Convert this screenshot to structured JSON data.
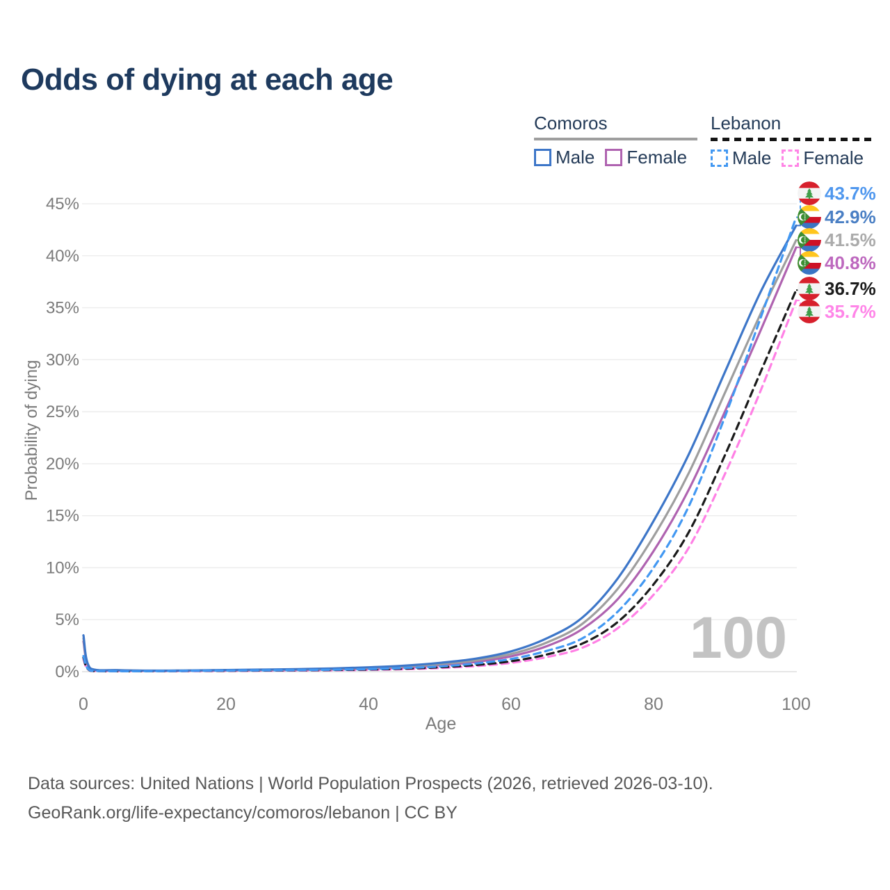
{
  "title": "Odds of dying at each age",
  "legend": {
    "groups": [
      {
        "country": "Comoros",
        "line_style": "solid",
        "underline_color": "#9e9e9e",
        "items": [
          {
            "label": "Male",
            "color": "#3d76c8",
            "dashed": false
          },
          {
            "label": "Female",
            "color": "#af63b0",
            "dashed": false
          }
        ]
      },
      {
        "country": "Lebanon",
        "line_style": "dashed",
        "underline_color": "#141414",
        "items": [
          {
            "label": "Male",
            "color": "#4298f2",
            "dashed": true
          },
          {
            "label": "Female",
            "color": "#ff85e6",
            "dashed": true
          }
        ]
      }
    ]
  },
  "axes": {
    "y_title": "Probability of dying",
    "x_title": "Age",
    "y_ticks": [
      {
        "label": "45%",
        "value": 45
      },
      {
        "label": "40%",
        "value": 40
      },
      {
        "label": "35%",
        "value": 35
      },
      {
        "label": "30%",
        "value": 30
      },
      {
        "label": "25%",
        "value": 25
      },
      {
        "label": "20%",
        "value": 20
      },
      {
        "label": "15%",
        "value": 15
      },
      {
        "label": "10%",
        "value": 10
      },
      {
        "label": "5%",
        "value": 5
      },
      {
        "label": "0%",
        "value": 0
      }
    ],
    "x_ticks": [
      {
        "label": "0",
        "value": 0
      },
      {
        "label": "20",
        "value": 20
      },
      {
        "label": "40",
        "value": 40
      },
      {
        "label": "60",
        "value": 60
      },
      {
        "label": "80",
        "value": 80
      },
      {
        "label": "100",
        "value": 100
      }
    ]
  },
  "watermark": "100",
  "footer": {
    "line1": "Data sources: United Nations | World Population Prospects (2026, retrieved 2026-03-10).",
    "line2": "GeoRank.org/life-expectancy/comoros/lebanon | CC BY"
  },
  "chart_data": {
    "type": "line",
    "x_label": "Age",
    "y_label": "Probability of dying",
    "x_range": [
      0,
      100
    ],
    "y_range_percent": [
      0,
      45
    ],
    "grid": "horizontal",
    "x": [
      0,
      1,
      5,
      10,
      15,
      20,
      25,
      30,
      35,
      40,
      45,
      50,
      55,
      60,
      65,
      70,
      75,
      80,
      85,
      90,
      95,
      100
    ],
    "series": [
      {
        "name": "Lebanon — Male",
        "color": "#4298f2",
        "label_color": "#4f97ee",
        "dashed": true,
        "flag": "lebanon",
        "end_label": "43.7%",
        "end_value": 43.7,
        "values": [
          1.5,
          0.1,
          0.05,
          0.05,
          0.08,
          0.11,
          0.13,
          0.15,
          0.19,
          0.25,
          0.35,
          0.5,
          0.78,
          1.22,
          2.0,
          3.2,
          5.8,
          10.0,
          16.0,
          24.5,
          34.0,
          43.7
        ]
      },
      {
        "name": "Comoros — Male",
        "color": "#3d76c8",
        "label_color": "#4a7fc4",
        "dashed": false,
        "flag": "comoros",
        "end_label": "42.9%",
        "end_value": 42.9,
        "values": [
          3.5,
          0.3,
          0.15,
          0.1,
          0.12,
          0.16,
          0.2,
          0.25,
          0.31,
          0.42,
          0.58,
          0.85,
          1.25,
          1.95,
          3.2,
          5.2,
          9.0,
          14.5,
          21.0,
          28.8,
          36.5,
          42.9
        ]
      },
      {
        "name": "Comoros — Both sexes",
        "color": "#9e9e9e",
        "label_color": "#ababab",
        "dashed": false,
        "flag": "comoros",
        "end_label": "41.5%",
        "end_value": 41.5,
        "values": [
          3.2,
          0.28,
          0.13,
          0.09,
          0.11,
          0.14,
          0.17,
          0.21,
          0.27,
          0.36,
          0.5,
          0.73,
          1.08,
          1.7,
          2.8,
          4.6,
          8.0,
          13.0,
          19.2,
          26.8,
          34.4,
          41.5
        ]
      },
      {
        "name": "Comoros — Female",
        "color": "#af63b0",
        "label_color": "#bd68be",
        "dashed": false,
        "flag": "comoros",
        "end_label": "40.8%",
        "end_value": 40.8,
        "values": [
          2.9,
          0.25,
          0.12,
          0.08,
          0.09,
          0.12,
          0.14,
          0.17,
          0.22,
          0.3,
          0.42,
          0.62,
          0.93,
          1.48,
          2.45,
          4.1,
          7.0,
          11.6,
          17.6,
          25.0,
          32.8,
          40.8
        ]
      },
      {
        "name": "Lebanon — Both sexes",
        "color": "#1a1a1a",
        "label_color": "#1c1c1c",
        "dashed": true,
        "flag": "lebanon",
        "end_label": "36.7%",
        "end_value": 36.7,
        "values": [
          1.35,
          0.09,
          0.045,
          0.045,
          0.07,
          0.09,
          0.11,
          0.13,
          0.16,
          0.21,
          0.29,
          0.42,
          0.64,
          1.0,
          1.65,
          2.7,
          4.8,
          8.4,
          13.5,
          20.8,
          28.8,
          36.7
        ]
      },
      {
        "name": "Lebanon — Female",
        "color": "#ff80e5",
        "label_color": "#ff85e8",
        "dashed": true,
        "flag": "lebanon",
        "end_label": "35.7%",
        "end_value": 35.7,
        "values": [
          1.2,
          0.08,
          0.04,
          0.04,
          0.05,
          0.07,
          0.09,
          0.11,
          0.13,
          0.17,
          0.24,
          0.35,
          0.53,
          0.85,
          1.4,
          2.3,
          4.2,
          7.4,
          12.0,
          19.0,
          27.0,
          35.7
        ]
      }
    ]
  }
}
